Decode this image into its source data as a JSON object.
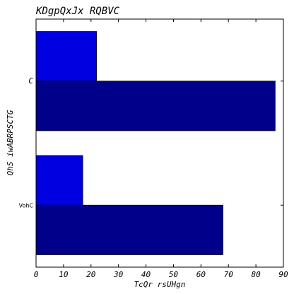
{
  "chart_data": {
    "type": "bar",
    "orientation": "horizontal",
    "title": "KDgpQxJx RQBVC",
    "xlabel": "TcQr rsUHgn",
    "ylabel": "QhS iwABRPSCTG",
    "categories": [
      "VohC",
      "C"
    ],
    "series": [
      {
        "color": "#00008b",
        "values": [
          68,
          87
        ]
      },
      {
        "color": "#0000e0",
        "values": [
          17,
          22
        ]
      }
    ],
    "xlim": [
      0,
      90
    ],
    "xticks": [
      0,
      10,
      20,
      30,
      40,
      50,
      60,
      70,
      80,
      90
    ],
    "grid": false,
    "legend": "none"
  }
}
